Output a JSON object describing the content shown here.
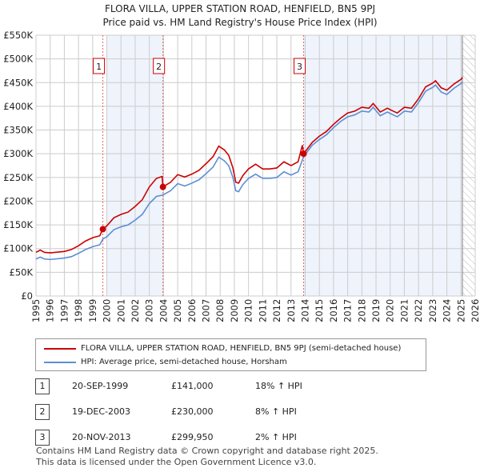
{
  "chart_data": {
    "type": "line",
    "title": "FLORA VILLA, UPPER STATION ROAD, HENFIELD, BN5 9PJ",
    "subtitle": "Price paid vs. HM Land Registry's House Price Index (HPI)",
    "xlim": [
      1995,
      2026
    ],
    "ylim": [
      0,
      550000
    ],
    "x_ticks": [
      "1995",
      "1996",
      "1997",
      "1998",
      "1999",
      "2000",
      "2001",
      "2002",
      "2003",
      "2004",
      "2005",
      "2006",
      "2007",
      "2008",
      "2009",
      "2010",
      "2011",
      "2012",
      "2013",
      "2014",
      "2015",
      "2016",
      "2017",
      "2018",
      "2019",
      "2020",
      "2021",
      "2022",
      "2023",
      "2024",
      "2025",
      "2026"
    ],
    "y_ticks": [
      {
        "v": 0,
        "l": "£0"
      },
      {
        "v": 50000,
        "l": "£50K"
      },
      {
        "v": 100000,
        "l": "£100K"
      },
      {
        "v": 150000,
        "l": "£150K"
      },
      {
        "v": 200000,
        "l": "£200K"
      },
      {
        "v": 250000,
        "l": "£250K"
      },
      {
        "v": 300000,
        "l": "£300K"
      },
      {
        "v": 350000,
        "l": "£350K"
      },
      {
        "v": 400000,
        "l": "£400K"
      },
      {
        "v": 450000,
        "l": "£450K"
      },
      {
        "v": 500000,
        "l": "£500K"
      },
      {
        "v": 550000,
        "l": "£550K"
      }
    ],
    "grid": true,
    "shaded_ranges": [
      [
        2000,
        2003.96
      ],
      [
        2013.89,
        2025.1
      ]
    ],
    "hatched_range": [
      2025.1,
      2026
    ],
    "series": [
      {
        "name": "FLORA VILLA, UPPER STATION ROAD, HENFIELD, BN5 9PJ (semi-detached house)",
        "color": "#cc0000",
        "points": [
          [
            1995,
            92
          ],
          [
            1995.3,
            97
          ],
          [
            1995.6,
            92
          ],
          [
            1996,
            91
          ],
          [
            1997,
            94
          ],
          [
            1997.5,
            98
          ],
          [
            1998,
            106
          ],
          [
            1998.5,
            116
          ],
          [
            1999,
            123
          ],
          [
            1999.5,
            127
          ],
          [
            1999.72,
            141
          ],
          [
            2000,
            148
          ],
          [
            2000.5,
            165
          ],
          [
            2001,
            172
          ],
          [
            2001.5,
            177
          ],
          [
            2002,
            189
          ],
          [
            2002.5,
            203
          ],
          [
            2003,
            230
          ],
          [
            2003.5,
            248
          ],
          [
            2003.9,
            252
          ],
          [
            2003.96,
            230
          ],
          [
            2004.5,
            240
          ],
          [
            2005,
            256
          ],
          [
            2005.5,
            251
          ],
          [
            2006,
            257
          ],
          [
            2006.5,
            265
          ],
          [
            2007,
            279
          ],
          [
            2007.5,
            294
          ],
          [
            2007.9,
            316
          ],
          [
            2008.3,
            308
          ],
          [
            2008.6,
            297
          ],
          [
            2008.9,
            270
          ],
          [
            2009.1,
            240
          ],
          [
            2009.3,
            238
          ],
          [
            2009.6,
            254
          ],
          [
            2010,
            268
          ],
          [
            2010.5,
            278
          ],
          [
            2011,
            268
          ],
          [
            2011.5,
            268
          ],
          [
            2012,
            270
          ],
          [
            2012.5,
            283
          ],
          [
            2013,
            275
          ],
          [
            2013.5,
            283
          ],
          [
            2013.8,
            318
          ],
          [
            2013.89,
            300
          ],
          [
            2014.5,
            324
          ],
          [
            2015,
            337
          ],
          [
            2015.5,
            347
          ],
          [
            2016,
            362
          ],
          [
            2016.5,
            375
          ],
          [
            2017,
            386
          ],
          [
            2017.5,
            390
          ],
          [
            2018,
            398
          ],
          [
            2018.5,
            396
          ],
          [
            2018.8,
            406
          ],
          [
            2019.3,
            388
          ],
          [
            2019.8,
            396
          ],
          [
            2020.2,
            390
          ],
          [
            2020.5,
            386
          ],
          [
            2021,
            398
          ],
          [
            2021.5,
            396
          ],
          [
            2022,
            416
          ],
          [
            2022.5,
            441
          ],
          [
            2023,
            449
          ],
          [
            2023.2,
            454
          ],
          [
            2023.6,
            439
          ],
          [
            2024,
            434
          ],
          [
            2024.5,
            447
          ],
          [
            2025,
            457
          ],
          [
            2025.1,
            461
          ]
        ]
      },
      {
        "name": "HPI: Average price, semi-detached house, Horsham",
        "color": "#5b8fd4",
        "points": [
          [
            1995,
            78
          ],
          [
            1995.3,
            82
          ],
          [
            1995.6,
            78
          ],
          [
            1996,
            77
          ],
          [
            1997,
            80
          ],
          [
            1997.5,
            83
          ],
          [
            1998,
            90
          ],
          [
            1998.5,
            98
          ],
          [
            1999,
            104
          ],
          [
            1999.5,
            108
          ],
          [
            1999.72,
            120
          ],
          [
            2000,
            125
          ],
          [
            2000.5,
            140
          ],
          [
            2001,
            146
          ],
          [
            2001.5,
            150
          ],
          [
            2002,
            160
          ],
          [
            2002.5,
            172
          ],
          [
            2003,
            195
          ],
          [
            2003.5,
            210
          ],
          [
            2003.96,
            213
          ],
          [
            2004.5,
            222
          ],
          [
            2005,
            237
          ],
          [
            2005.5,
            232
          ],
          [
            2006,
            238
          ],
          [
            2006.5,
            245
          ],
          [
            2007,
            258
          ],
          [
            2007.5,
            272
          ],
          [
            2007.9,
            293
          ],
          [
            2008.3,
            285
          ],
          [
            2008.6,
            275
          ],
          [
            2008.9,
            250
          ],
          [
            2009.1,
            222
          ],
          [
            2009.3,
            220
          ],
          [
            2009.6,
            235
          ],
          [
            2010,
            248
          ],
          [
            2010.5,
            257
          ],
          [
            2011,
            248
          ],
          [
            2011.5,
            248
          ],
          [
            2012,
            250
          ],
          [
            2012.5,
            262
          ],
          [
            2013,
            255
          ],
          [
            2013.5,
            262
          ],
          [
            2013.89,
            294
          ],
          [
            2014.5,
            318
          ],
          [
            2015,
            330
          ],
          [
            2015.5,
            340
          ],
          [
            2016,
            355
          ],
          [
            2016.5,
            368
          ],
          [
            2017,
            378
          ],
          [
            2017.5,
            382
          ],
          [
            2018,
            390
          ],
          [
            2018.5,
            388
          ],
          [
            2018.8,
            398
          ],
          [
            2019.3,
            380
          ],
          [
            2019.8,
            388
          ],
          [
            2020.2,
            382
          ],
          [
            2020.5,
            378
          ],
          [
            2021,
            390
          ],
          [
            2021.5,
            388
          ],
          [
            2022,
            408
          ],
          [
            2022.5,
            432
          ],
          [
            2023,
            440
          ],
          [
            2023.2,
            445
          ],
          [
            2023.6,
            430
          ],
          [
            2024,
            425
          ],
          [
            2024.5,
            438
          ],
          [
            2025,
            448
          ],
          [
            2025.1,
            452
          ]
        ]
      }
    ],
    "sales": [
      {
        "label": "1",
        "x": 1999.72,
        "y": 141000
      },
      {
        "label": "2",
        "x": 2003.96,
        "y": 230000
      },
      {
        "label": "3",
        "x": 2013.89,
        "y": 299950
      }
    ]
  },
  "legend": {
    "red": "FLORA VILLA, UPPER STATION ROAD, HENFIELD, BN5 9PJ (semi-detached house)",
    "blue": "HPI: Average price, semi-detached house, Horsham"
  },
  "transactions": [
    {
      "n": "1",
      "date": "20-SEP-1999",
      "price": "£141,000",
      "hpi": "18% ↑ HPI"
    },
    {
      "n": "2",
      "date": "19-DEC-2003",
      "price": "£230,000",
      "hpi": "8% ↑ HPI"
    },
    {
      "n": "3",
      "date": "20-NOV-2013",
      "price": "£299,950",
      "hpi": "2% ↑ HPI"
    }
  ],
  "footer": [
    "Contains HM Land Registry data © Crown copyright and database right 2025.",
    "This data is licensed under the Open Government Licence v3.0."
  ]
}
